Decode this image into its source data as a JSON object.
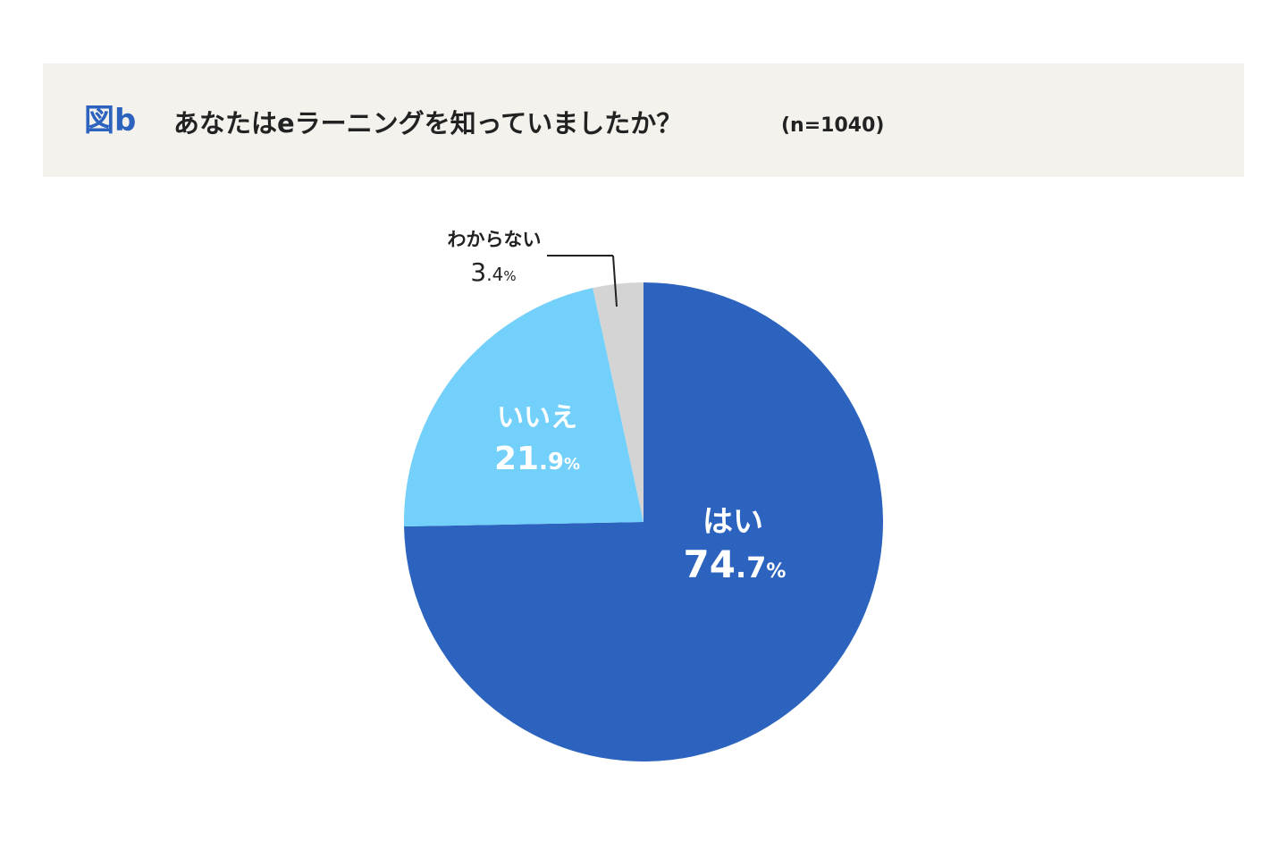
{
  "header": {
    "figure_label": "図b",
    "question": "あなたはeラーニングを知っていましたか？",
    "sample_size": "(n=1040)"
  },
  "colors": {
    "header_bg": "#f4f2ed",
    "accent": "#2c63be",
    "yes": "#2c63be",
    "no": "#72d0fa",
    "unknown": "#d4d4d4"
  },
  "chart_data": {
    "type": "pie",
    "title": "あなたはeラーニングを知っていましたか？",
    "slices": [
      {
        "label": "はい",
        "value": 74.7,
        "whole": "74",
        "decimal": ".7",
        "unit": "%",
        "color": "#2c63be"
      },
      {
        "label": "いいえ",
        "value": 21.9,
        "whole": "21",
        "decimal": ".9",
        "unit": "%",
        "color": "#72d0fa"
      },
      {
        "label": "わからない",
        "value": 3.4,
        "whole": "3",
        "decimal": ".4",
        "unit": "%",
        "color": "#d4d4d4"
      }
    ],
    "start": "12 o'clock",
    "direction": "clockwise"
  }
}
